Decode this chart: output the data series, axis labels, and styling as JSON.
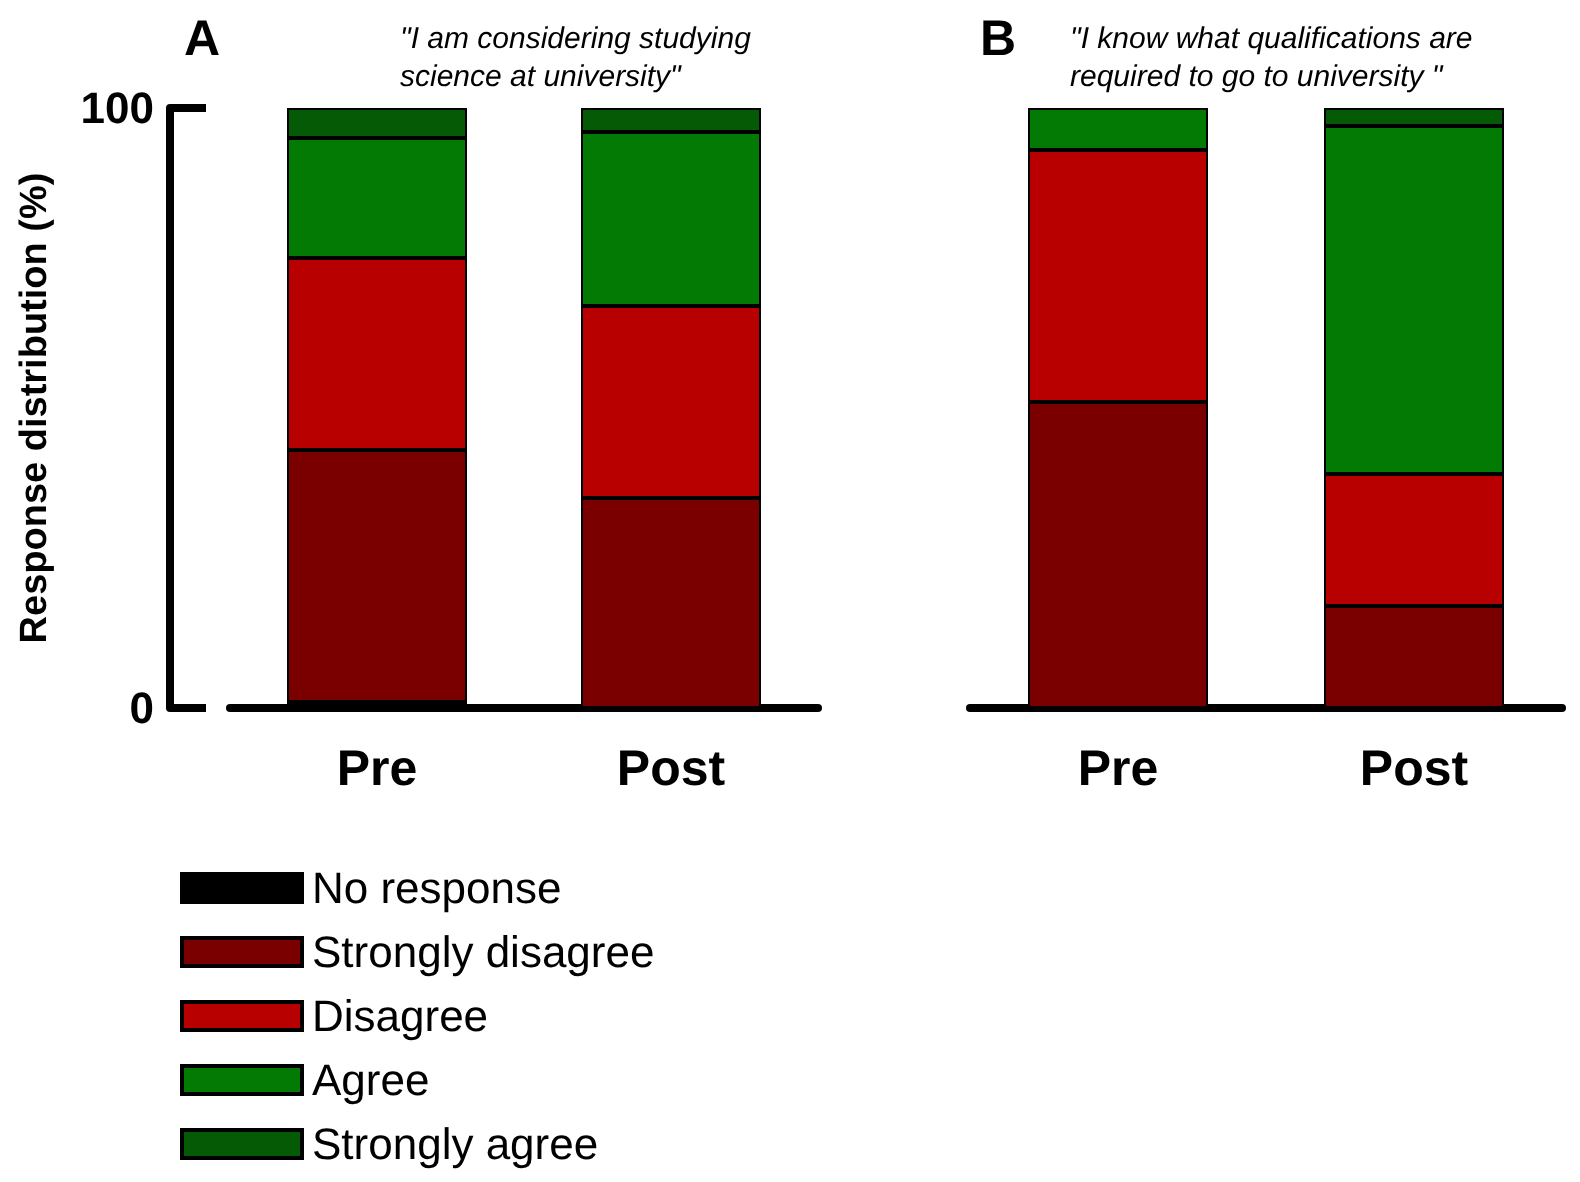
{
  "chart_data": [
    {
      "type": "bar",
      "title": "A",
      "subtitle": "\"I am considering studying\nscience at university\"",
      "ylabel": "Response distribution (%)",
      "categories": [
        "Pre",
        "Post"
      ],
      "stacked": true,
      "ylim": [
        0,
        100
      ],
      "yticks": [
        0,
        100
      ],
      "grid": false,
      "legend": "bottom left",
      "series": [
        {
          "name": "No response",
          "color": "#000000",
          "values": [
            1,
            0
          ]
        },
        {
          "name": "Strongly disagree",
          "color": "#7a0000",
          "values": [
            42,
            35
          ]
        },
        {
          "name": "Disagree",
          "color": "#b80000",
          "values": [
            32,
            32
          ]
        },
        {
          "name": "Agree",
          "color": "#037a03",
          "values": [
            20,
            29
          ]
        },
        {
          "name": "Strongly agree",
          "color": "#055a05",
          "values": [
            5,
            4
          ]
        }
      ]
    },
    {
      "type": "bar",
      "title": "B",
      "subtitle": "\"I know what qualifications are\nrequired to go to university \"",
      "categories": [
        "Pre",
        "Post"
      ],
      "stacked": true,
      "ylim": [
        0,
        100
      ],
      "tick_labels": "x",
      "grid": false,
      "legend": false,
      "series": [
        {
          "color": "#000000",
          "values": [
            0,
            0
          ]
        },
        {
          "color": "#7a0000",
          "values": [
            51,
            17
          ]
        },
        {
          "color": "#b80000",
          "values": [
            42,
            22
          ]
        },
        {
          "color": "#037a03",
          "values": [
            7,
            58
          ]
        },
        {
          "color": "#055a05",
          "values": [
            0,
            3
          ]
        }
      ]
    }
  ]
}
